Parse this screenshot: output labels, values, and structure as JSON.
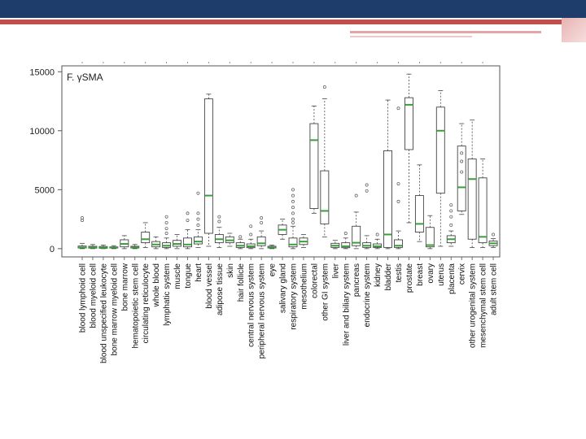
{
  "slide": {
    "accent_colors": {
      "band": "#1f3d6b",
      "stripe": "#c0504d"
    }
  },
  "chart_data": {
    "type": "box",
    "title": "F. γSMA",
    "xlabel": "",
    "ylabel": "",
    "ylim": [
      -700,
      15500
    ],
    "yticks": [
      0,
      5000,
      10000,
      15000
    ],
    "ytick_labels": [
      "0",
      "5000",
      "10000",
      "15000"
    ],
    "median_color": "#3a9e3a",
    "box_color": "#444444",
    "categories": [
      "blood lymphoid cell",
      "blood myeloid cell",
      "blood unspecified leukocyte",
      "bone marrow myeloid cell",
      "bone marrow",
      "hematopoietic stem cell",
      "circulating reticulocyte",
      "whole blood",
      "lymphatic system",
      "muscle",
      "tongue",
      "heart",
      "blood vessel",
      "adipose tissue",
      "skin",
      "hair follicle",
      "central nervous system",
      "peripheral nervous system",
      "eye",
      "salivary gland",
      "respiratory system",
      "mesothelium",
      "colorectal",
      "other GI system",
      "liver",
      "liver and biliary system",
      "pancreas",
      "endocrine system",
      "kidney",
      "bladder",
      "testis",
      "prostate",
      "breast",
      "ovary",
      "uterus",
      "placenta",
      "cervix",
      "other urogenital system",
      "mesenchymal stem cell",
      "adult stem cell"
    ],
    "boxes": [
      {
        "q1": 50,
        "median": 100,
        "q3": 220,
        "whisker_low": 0,
        "whisker_high": 450,
        "outliers": [
          2400,
          2600
        ]
      },
      {
        "q1": 40,
        "median": 90,
        "q3": 200,
        "whisker_low": 0,
        "whisker_high": 350,
        "outliers": []
      },
      {
        "q1": 30,
        "median": 80,
        "q3": 180,
        "whisker_low": 0,
        "whisker_high": 300,
        "outliers": []
      },
      {
        "q1": 50,
        "median": 100,
        "q3": 150,
        "whisker_low": 0,
        "whisker_high": 250,
        "outliers": []
      },
      {
        "q1": 150,
        "median": 400,
        "q3": 750,
        "whisker_low": 0,
        "whisker_high": 1100,
        "outliers": []
      },
      {
        "q1": 50,
        "median": 100,
        "q3": 200,
        "whisker_low": 0,
        "whisker_high": 350,
        "outliers": []
      },
      {
        "q1": 500,
        "median": 800,
        "q3": 1400,
        "whisker_low": 100,
        "whisker_high": 2200,
        "outliers": []
      },
      {
        "q1": 150,
        "median": 350,
        "q3": 600,
        "whisker_low": 0,
        "whisker_high": 1000,
        "outliers": []
      },
      {
        "q1": 100,
        "median": 250,
        "q3": 500,
        "whisker_low": 0,
        "whisker_high": 900,
        "outliers": [
          1300,
          1700,
          2200,
          2700
        ]
      },
      {
        "q1": 200,
        "median": 400,
        "q3": 700,
        "whisker_low": 0,
        "whisker_high": 1200,
        "outliers": []
      },
      {
        "q1": 150,
        "median": 350,
        "q3": 900,
        "whisker_low": 0,
        "whisker_high": 1600,
        "outliers": [
          2400,
          3000
        ]
      },
      {
        "q1": 400,
        "median": 600,
        "q3": 1000,
        "whisker_low": 100,
        "whisker_high": 1600,
        "outliers": [
          2000,
          2500,
          3000,
          4700
        ]
      },
      {
        "q1": 1300,
        "median": 4500,
        "q3": 12700,
        "whisker_low": 200,
        "whisker_high": 13100,
        "outliers": []
      },
      {
        "q1": 500,
        "median": 800,
        "q3": 1200,
        "whisker_low": 100,
        "whisker_high": 1800,
        "outliers": [
          2300,
          2700
        ]
      },
      {
        "q1": 500,
        "median": 700,
        "q3": 1000,
        "whisker_low": 200,
        "whisker_high": 1300,
        "outliers": []
      },
      {
        "q1": 100,
        "median": 250,
        "q3": 500,
        "whisker_low": 0,
        "whisker_high": 800,
        "outliers": [
          1000
        ]
      },
      {
        "q1": 80,
        "median": 200,
        "q3": 400,
        "whisker_low": 0,
        "whisker_high": 800,
        "outliers": [
          1200,
          1900
        ]
      },
      {
        "q1": 250,
        "median": 450,
        "q3": 1000,
        "whisker_low": 0,
        "whisker_high": 1500,
        "outliers": [
          2200,
          2600
        ]
      },
      {
        "q1": 50,
        "median": 100,
        "q3": 200,
        "whisker_low": 0,
        "whisker_high": 300,
        "outliers": []
      },
      {
        "q1": 1200,
        "median": 1600,
        "q3": 2000,
        "whisker_low": 800,
        "whisker_high": 2500,
        "outliers": []
      },
      {
        "q1": 150,
        "median": 350,
        "q3": 900,
        "whisker_low": 0,
        "whisker_high": 1900,
        "outliers": [
          2200,
          2500,
          3000,
          3500,
          4000,
          4500,
          5000
        ]
      },
      {
        "q1": 350,
        "median": 600,
        "q3": 900,
        "whisker_low": 100,
        "whisker_high": 1200,
        "outliers": []
      },
      {
        "q1": 3400,
        "median": 9200,
        "q3": 10600,
        "whisker_low": 3000,
        "whisker_high": 12100,
        "outliers": []
      },
      {
        "q1": 2100,
        "median": 3200,
        "q3": 6600,
        "whisker_low": 1000,
        "whisker_high": 12700,
        "outliers": [
          13700
        ]
      },
      {
        "q1": 100,
        "median": 250,
        "q3": 450,
        "whisker_low": 0,
        "whisker_high": 700,
        "outliers": []
      },
      {
        "q1": 80,
        "median": 200,
        "q3": 500,
        "whisker_low": 0,
        "whisker_high": 900,
        "outliers": [
          1300
        ]
      },
      {
        "q1": 250,
        "median": 500,
        "q3": 1900,
        "whisker_low": 0,
        "whisker_high": 3100,
        "outliers": [
          4500
        ]
      },
      {
        "q1": 100,
        "median": 250,
        "q3": 500,
        "whisker_low": 0,
        "whisker_high": 1100,
        "outliers": [
          4900,
          5400
        ]
      },
      {
        "q1": 100,
        "median": 200,
        "q3": 400,
        "whisker_low": 0,
        "whisker_high": 800,
        "outliers": [
          1200
        ]
      },
      {
        "q1": 100,
        "median": 1200,
        "q3": 8300,
        "whisker_low": 0,
        "whisker_high": 12600,
        "outliers": []
      },
      {
        "q1": 100,
        "median": 250,
        "q3": 750,
        "whisker_low": 0,
        "whisker_high": 1500,
        "outliers": [
          4000,
          5500,
          11900
        ]
      },
      {
        "q1": 8400,
        "median": 12200,
        "q3": 12800,
        "whisker_low": 2200,
        "whisker_high": 14800,
        "outliers": []
      },
      {
        "q1": 1400,
        "median": 2100,
        "q3": 4500,
        "whisker_low": 600,
        "whisker_high": 7100,
        "outliers": []
      },
      {
        "q1": 150,
        "median": 300,
        "q3": 1800,
        "whisker_low": 0,
        "whisker_high": 2800,
        "outliers": []
      },
      {
        "q1": 4700,
        "median": 10000,
        "q3": 12000,
        "whisker_low": 200,
        "whisker_high": 13400,
        "outliers": []
      },
      {
        "q1": 500,
        "median": 800,
        "q3": 1100,
        "whisker_low": 200,
        "whisker_high": 1500,
        "outliers": [
          2000,
          2700,
          3200,
          3700
        ]
      },
      {
        "q1": 3200,
        "median": 5200,
        "q3": 8700,
        "whisker_low": 2900,
        "whisker_high": 10600,
        "outliers": [
          6500,
          7400,
          8100
        ]
      },
      {
        "q1": 800,
        "median": 5900,
        "q3": 7600,
        "whisker_low": 100,
        "whisker_high": 10900,
        "outliers": []
      },
      {
        "q1": 500,
        "median": 1000,
        "q3": 6000,
        "whisker_low": 100,
        "whisker_high": 7600,
        "outliers": []
      },
      {
        "q1": 250,
        "median": 450,
        "q3": 650,
        "whisker_low": 100,
        "whisker_high": 850,
        "outliers": [
          1200
        ]
      }
    ]
  }
}
